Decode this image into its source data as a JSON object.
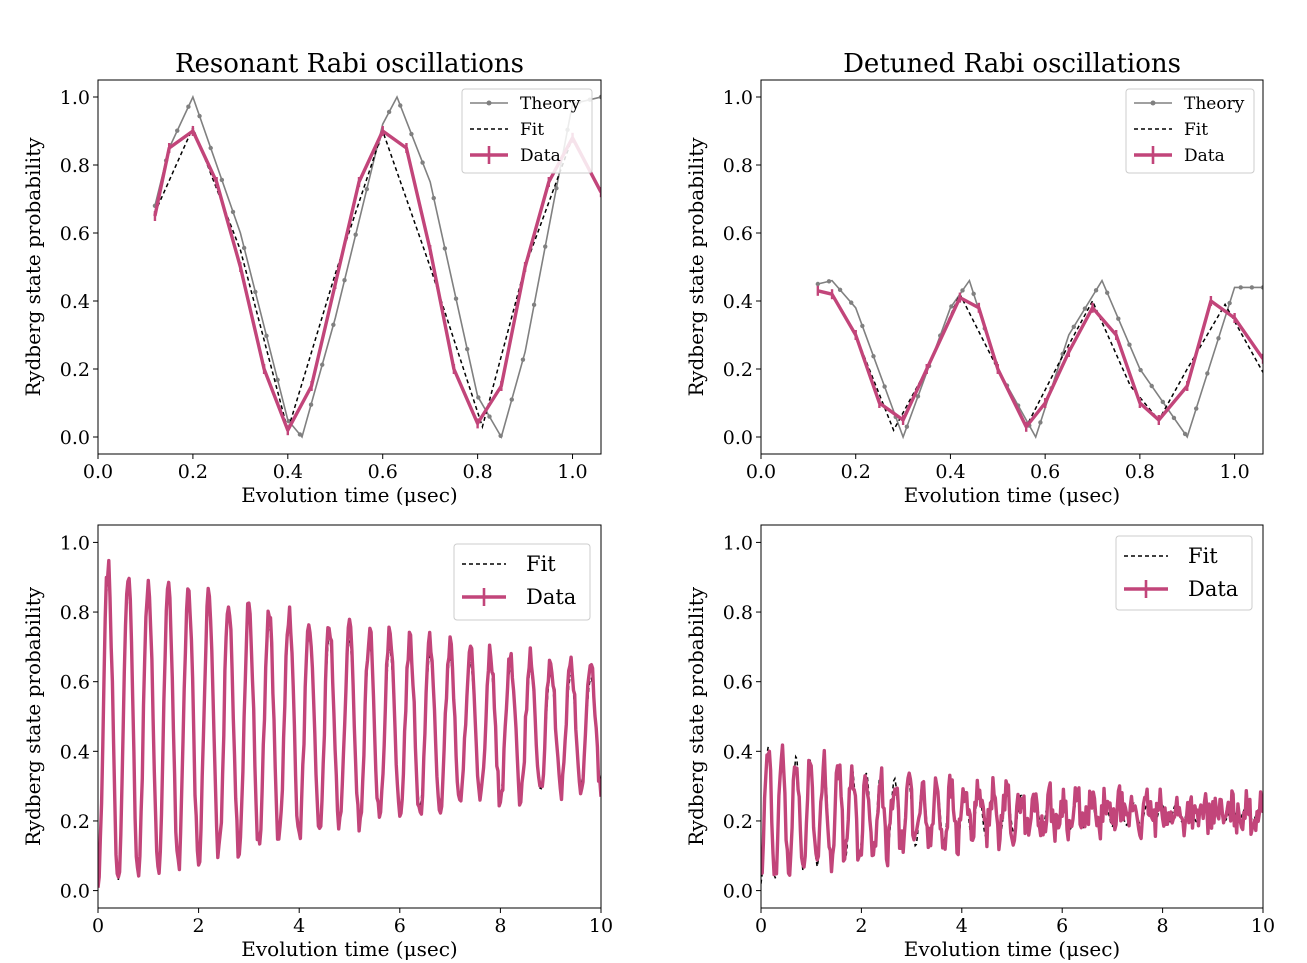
{
  "figure": {
    "background": "#ffffff"
  },
  "colors": {
    "theory": "#808080",
    "fit": "#000000",
    "data": "#c2457a",
    "legend_border": "#cccccc"
  },
  "chart_data": [
    {
      "id": "resonant_short",
      "type": "line",
      "title": "Resonant Rabi oscillations",
      "xlabel": "Evolution time (μsec)",
      "ylabel": "Rydberg state probability",
      "xlim": [
        0.0,
        1.06
      ],
      "ylim": [
        -0.05,
        1.05
      ],
      "xticks": [
        "0.0",
        "0.2",
        "0.4",
        "0.6",
        "0.8",
        "1.0"
      ],
      "yticks": [
        "0.0",
        "0.2",
        "0.4",
        "0.6",
        "0.8",
        "1.0"
      ],
      "legend": {
        "position": "top-right",
        "entries": [
          "Theory",
          "Fit",
          "Data"
        ]
      },
      "series": [
        {
          "name": "Theory",
          "style": "line-markers",
          "color": "#808080",
          "x": [
            0.12,
            0.15,
            0.2,
            0.3,
            0.4,
            0.43,
            0.5,
            0.6,
            0.63,
            0.7,
            0.8,
            0.85,
            0.9,
            1.0,
            1.06
          ],
          "y": [
            0.68,
            0.85,
            1.0,
            0.6,
            0.05,
            0.0,
            0.35,
            0.92,
            1.0,
            0.75,
            0.12,
            0.0,
            0.25,
            0.98,
            1.0
          ]
        },
        {
          "name": "Fit",
          "style": "dashed",
          "color": "#000000",
          "x": [
            0.12,
            0.2,
            0.3,
            0.4,
            0.5,
            0.6,
            0.7,
            0.81,
            0.9,
            1.0,
            1.06
          ],
          "y": [
            0.66,
            0.91,
            0.55,
            0.02,
            0.48,
            0.9,
            0.5,
            0.03,
            0.5,
            0.88,
            0.72
          ]
        },
        {
          "name": "Data",
          "style": "errorbar",
          "color": "#c2457a",
          "x": [
            0.12,
            0.15,
            0.2,
            0.25,
            0.3,
            0.35,
            0.4,
            0.45,
            0.5,
            0.55,
            0.6,
            0.65,
            0.7,
            0.75,
            0.8,
            0.85,
            0.9,
            0.95,
            1.0,
            1.06
          ],
          "y": [
            0.65,
            0.85,
            0.9,
            0.75,
            0.5,
            0.2,
            0.02,
            0.15,
            0.45,
            0.75,
            0.9,
            0.85,
            0.55,
            0.2,
            0.04,
            0.15,
            0.5,
            0.75,
            0.88,
            0.72
          ]
        }
      ]
    },
    {
      "id": "detuned_short",
      "type": "line",
      "title": "Detuned Rabi oscillations",
      "xlabel": "Evolution time (μsec)",
      "ylabel": "Rydberg state probability",
      "xlim": [
        0.0,
        1.06
      ],
      "ylim": [
        -0.05,
        1.05
      ],
      "xticks": [
        "0.0",
        "0.2",
        "0.4",
        "0.6",
        "0.8",
        "1.0"
      ],
      "yticks": [
        "0.0",
        "0.2",
        "0.4",
        "0.6",
        "0.8",
        "1.0"
      ],
      "legend": {
        "position": "top-right",
        "entries": [
          "Theory",
          "Fit",
          "Data"
        ]
      },
      "series": [
        {
          "name": "Theory",
          "style": "line-markers",
          "color": "#808080",
          "x": [
            0.12,
            0.15,
            0.2,
            0.3,
            0.4,
            0.44,
            0.5,
            0.58,
            0.65,
            0.72,
            0.8,
            0.9,
            1.0,
            1.06
          ],
          "y": [
            0.45,
            0.46,
            0.38,
            0.0,
            0.38,
            0.46,
            0.2,
            0.0,
            0.3,
            0.46,
            0.2,
            0.0,
            0.44,
            0.44
          ]
        },
        {
          "name": "Fit",
          "style": "dashed",
          "color": "#000000",
          "x": [
            0.12,
            0.15,
            0.2,
            0.28,
            0.35,
            0.42,
            0.5,
            0.56,
            0.63,
            0.7,
            0.78,
            0.84,
            0.9,
            0.98,
            1.06
          ],
          "y": [
            0.43,
            0.42,
            0.3,
            0.02,
            0.2,
            0.42,
            0.2,
            0.03,
            0.22,
            0.4,
            0.15,
            0.05,
            0.2,
            0.39,
            0.19
          ]
        },
        {
          "name": "Data",
          "style": "errorbar",
          "color": "#c2457a",
          "x": [
            0.12,
            0.15,
            0.2,
            0.25,
            0.3,
            0.35,
            0.42,
            0.46,
            0.5,
            0.56,
            0.6,
            0.65,
            0.7,
            0.75,
            0.8,
            0.84,
            0.9,
            0.95,
            1.0,
            1.06
          ],
          "y": [
            0.43,
            0.42,
            0.3,
            0.1,
            0.05,
            0.2,
            0.41,
            0.38,
            0.2,
            0.03,
            0.1,
            0.25,
            0.38,
            0.3,
            0.1,
            0.05,
            0.15,
            0.4,
            0.35,
            0.23
          ]
        }
      ]
    },
    {
      "id": "resonant_long",
      "type": "line",
      "title": "",
      "xlabel": "Evolution time (μsec)",
      "ylabel": "Rydberg state probability",
      "xlim": [
        0,
        10
      ],
      "ylim": [
        -0.05,
        1.05
      ],
      "xticks": [
        "0",
        "2",
        "4",
        "6",
        "8",
        "10"
      ],
      "yticks": [
        "0.0",
        "0.2",
        "0.4",
        "0.6",
        "0.8",
        "1.0"
      ],
      "legend": {
        "position": "top-right",
        "entries": [
          "Fit",
          "Data"
        ]
      },
      "series": [
        {
          "name": "Fit",
          "style": "dashed",
          "color": "#000000",
          "model": {
            "offset": 0.46,
            "amplitude": 0.45,
            "period": 0.4,
            "decay": 9.0,
            "noise": 0.0
          }
        },
        {
          "name": "Data",
          "style": "errorbar",
          "color": "#c2457a",
          "model": {
            "offset": 0.47,
            "amplitude": 0.47,
            "period": 0.4,
            "decay": 10.0,
            "noise": 0.03
          }
        }
      ]
    },
    {
      "id": "detuned_long",
      "type": "line",
      "title": "",
      "xlabel": "Evolution time (μsec)",
      "ylabel": "Rydberg state probability",
      "xlim": [
        0,
        10
      ],
      "ylim": [
        -0.05,
        1.05
      ],
      "xticks": [
        "0",
        "2",
        "4",
        "6",
        "8",
        "10"
      ],
      "yticks": [
        "0.0",
        "0.2",
        "0.4",
        "0.6",
        "0.8",
        "1.0"
      ],
      "legend": {
        "position": "top-right",
        "entries": [
          "Fit",
          "Data"
        ]
      },
      "series": [
        {
          "name": "Fit",
          "style": "dashed",
          "color": "#000000",
          "model": {
            "offset": 0.22,
            "amplitude": 0.2,
            "period": 0.28,
            "decay": 4.0,
            "noise": 0.0
          }
        },
        {
          "name": "Data",
          "style": "errorbar",
          "color": "#c2457a",
          "model": {
            "offset": 0.22,
            "amplitude": 0.2,
            "period": 0.28,
            "decay": 4.0,
            "noise": 0.05
          }
        }
      ]
    }
  ]
}
